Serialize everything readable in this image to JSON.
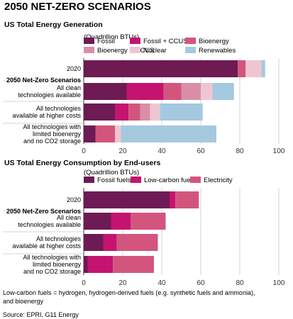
{
  "figure": {
    "title": "2050 NET-ZERO SCENARIOS",
    "note": "Low-carbon fuels = hydrogen, hydrogen-derived fuels (e.g. synthetic fuels and ammonia), and bioenergy",
    "source": "Source: EPRI, G11 Energy",
    "scenario_header": "2050 Net-Zero Scenarios"
  },
  "colors": {
    "fossil": "#6e1a55",
    "fossil_ccus": "#c5146f",
    "bioenergy": "#d3557d",
    "bioenergy_ccus": "#d98ea7",
    "nuclear": "#f0c5d2",
    "renewables": "#a4c9df",
    "fossil_fuels": "#6e1a55",
    "low_carbon_fuels": "#c5146f",
    "electricity": "#d3557d",
    "grid": "#c8c8c8",
    "axis": "#333333"
  },
  "chart_data": [
    {
      "type": "bar",
      "orientation": "horizontal",
      "stacked": true,
      "title": "US Total Energy Generation",
      "unit": "(Quadrillion BTUs)",
      "categories": [
        "2020",
        "All clean technologies available",
        "All technologies available at higher costs",
        "All technologies with limited bioenergy and no CO2 storage"
      ],
      "series": [
        {
          "name": "Fossil",
          "key": "fossil",
          "values": [
            79,
            22,
            16,
            6
          ]
        },
        {
          "name": "Fossil + CCUS",
          "key": "fossil_ccus",
          "values": [
            0,
            19,
            7,
            0
          ]
        },
        {
          "name": "Bioenergy",
          "key": "bioenergy",
          "values": [
            4,
            9,
            6,
            10
          ]
        },
        {
          "name": "Bioenergy + CCUS",
          "key": "bioenergy_ccus",
          "values": [
            0,
            10,
            5,
            0
          ]
        },
        {
          "name": "Nuclear",
          "key": "nuclear",
          "values": [
            8,
            6,
            5,
            3
          ]
        },
        {
          "name": "Renewables",
          "key": "renewables",
          "values": [
            2,
            11,
            22,
            49
          ]
        }
      ],
      "xlim": [
        0,
        100
      ],
      "xticks": [
        "0",
        "20",
        "40",
        "60",
        "80",
        "100"
      ],
      "grid": true,
      "legend": "top"
    },
    {
      "type": "bar",
      "orientation": "horizontal",
      "stacked": true,
      "title": "US Total Energy Consumption by End-users",
      "unit": "(Quadrillion BTUs)",
      "categories": [
        "2020",
        "All clean technologies available",
        "All technologies available at higher costs",
        "All technologies with limited bioenergy and no CO2 storage"
      ],
      "series": [
        {
          "name": "Fossil fuels",
          "key": "fossil_fuels",
          "values": [
            44,
            14,
            10,
            2
          ]
        },
        {
          "name": "Low-carbon fuels",
          "key": "low_carbon_fuels",
          "values": [
            3,
            10,
            7,
            13
          ]
        },
        {
          "name": "Electricity",
          "key": "electricity",
          "values": [
            12,
            18,
            21,
            21
          ]
        }
      ],
      "xlim": [
        0,
        100
      ],
      "xticks": [
        "0",
        "20",
        "40",
        "60",
        "80",
        "100"
      ],
      "grid": true,
      "legend": "top"
    }
  ]
}
